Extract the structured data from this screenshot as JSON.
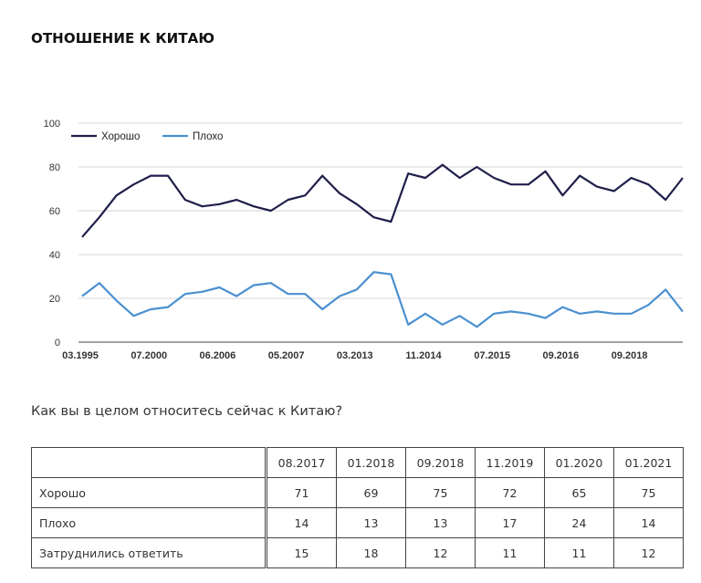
{
  "title": "ОТНОШЕНИЕ К КИТАЮ",
  "question": "Как вы в целом относитесь сейчас к Китаю?",
  "chart_data": {
    "type": "line",
    "title": "",
    "xlabel": "",
    "ylabel": "",
    "ylim": [
      0,
      100
    ],
    "yticks": [
      0,
      20,
      40,
      60,
      80,
      100
    ],
    "grid": true,
    "legend_position": "top-left",
    "x_tick_labels": [
      "03.1995",
      "07.2000",
      "06.2006",
      "05.2007",
      "03.2013",
      "11.2014",
      "07.2015",
      "09.2016",
      "09.2018"
    ],
    "series": [
      {
        "name": "Хорошо",
        "color": "#1e1e4a",
        "values": [
          48,
          57,
          67,
          72,
          76,
          76,
          65,
          62,
          63,
          65,
          62,
          60,
          65,
          67,
          76,
          68,
          63,
          57,
          55,
          77,
          75,
          81,
          75,
          80,
          75,
          72,
          72,
          78,
          67,
          76,
          71,
          69,
          75,
          72,
          65,
          75
        ]
      },
      {
        "name": "Плохо",
        "color": "#4a90d0",
        "values": [
          21,
          27,
          19,
          12,
          15,
          16,
          22,
          23,
          25,
          21,
          26,
          27,
          22,
          22,
          15,
          21,
          24,
          32,
          31,
          8,
          13,
          8,
          12,
          7,
          13,
          14,
          13,
          11,
          16,
          13,
          14,
          13,
          13,
          17,
          24,
          14
        ]
      }
    ]
  },
  "table": {
    "headers": [
      "08.2017",
      "01.2018",
      "09.2018",
      "11.2019",
      "01.2020",
      "01.2021"
    ],
    "rows": [
      {
        "label": "Хорошо",
        "values": [
          "71",
          "69",
          "75",
          "72",
          "65",
          "75"
        ]
      },
      {
        "label": "Плохо",
        "values": [
          "14",
          "13",
          "13",
          "17",
          "24",
          "14"
        ]
      },
      {
        "label": "Затруднились ответить",
        "values": [
          "15",
          "18",
          "12",
          "11",
          "11",
          "12"
        ]
      }
    ]
  }
}
